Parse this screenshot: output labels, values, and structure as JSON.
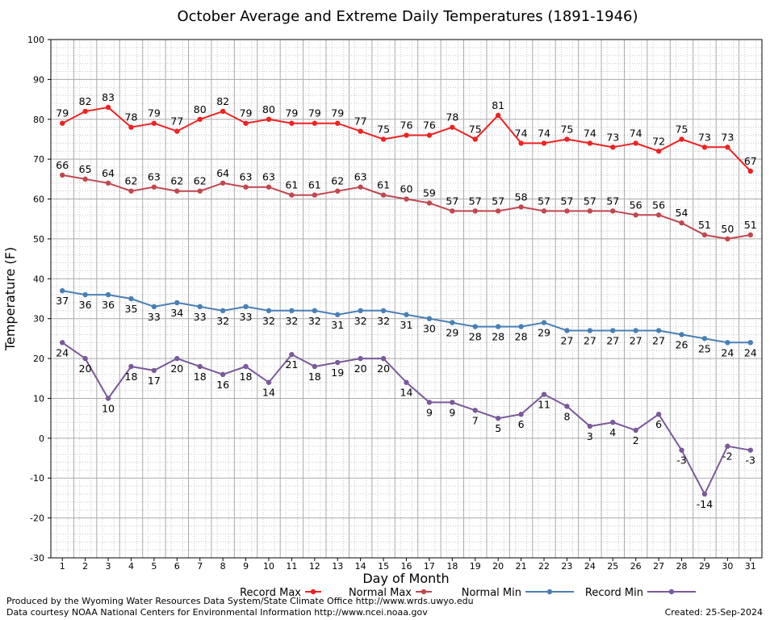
{
  "footer": {
    "line1": "Produced by the Wyoming Water Resources Data System/State Climate Office http://www.wrds.uwyo.edu",
    "line2": "Data courtesy NOAA National Centers for Environmental Information http://www.ncei.noaa.gov",
    "created": "Created:  25-Sep-2024"
  },
  "chart_data": {
    "type": "line",
    "title": "October Average and Extreme Daily Temperatures (1891-1946)",
    "xlabel": "Day of Month",
    "ylabel": "Temperature (F)",
    "xlim": [
      1,
      31
    ],
    "ylim": [
      -30,
      100
    ],
    "y_major_step": 10,
    "grid": true,
    "legend_position": "bottom",
    "x": [
      1,
      2,
      3,
      4,
      5,
      6,
      7,
      8,
      9,
      10,
      11,
      12,
      13,
      14,
      15,
      16,
      17,
      18,
      19,
      20,
      21,
      22,
      23,
      24,
      25,
      26,
      27,
      28,
      29,
      30,
      31
    ],
    "series": [
      {
        "name": "Record Max",
        "color": "#ee2222",
        "label_position": "above",
        "values": [
          79,
          82,
          83,
          78,
          79,
          77,
          80,
          82,
          79,
          80,
          79,
          79,
          79,
          77,
          75,
          76,
          76,
          78,
          75,
          81,
          74,
          74,
          75,
          74,
          73,
          74,
          72,
          75,
          73,
          73,
          67
        ]
      },
      {
        "name": "Normal Max",
        "color": "#c0474f",
        "label_position": "above",
        "values": [
          66,
          65,
          64,
          62,
          63,
          62,
          62,
          64,
          63,
          63,
          61,
          61,
          62,
          63,
          61,
          60,
          59,
          57,
          57,
          57,
          58,
          57,
          57,
          57,
          57,
          56,
          56,
          54,
          51,
          50,
          51
        ]
      },
      {
        "name": "Normal Min",
        "color": "#4a7fb5",
        "label_position": "below",
        "values": [
          37,
          36,
          36,
          35,
          33,
          34,
          33,
          32,
          33,
          32,
          32,
          32,
          31,
          32,
          32,
          31,
          30,
          29,
          28,
          28,
          28,
          29,
          27,
          27,
          27,
          27,
          27,
          26,
          25,
          24,
          24
        ]
      },
      {
        "name": "Record Min",
        "color": "#7a5a9a",
        "label_position": "below",
        "values": [
          24,
          20,
          10,
          18,
          17,
          20,
          18,
          16,
          18,
          14,
          21,
          18,
          19,
          20,
          20,
          14,
          9,
          9,
          7,
          5,
          6,
          11,
          8,
          3,
          4,
          2,
          6,
          -3,
          -14,
          -2,
          -3
        ]
      }
    ]
  }
}
